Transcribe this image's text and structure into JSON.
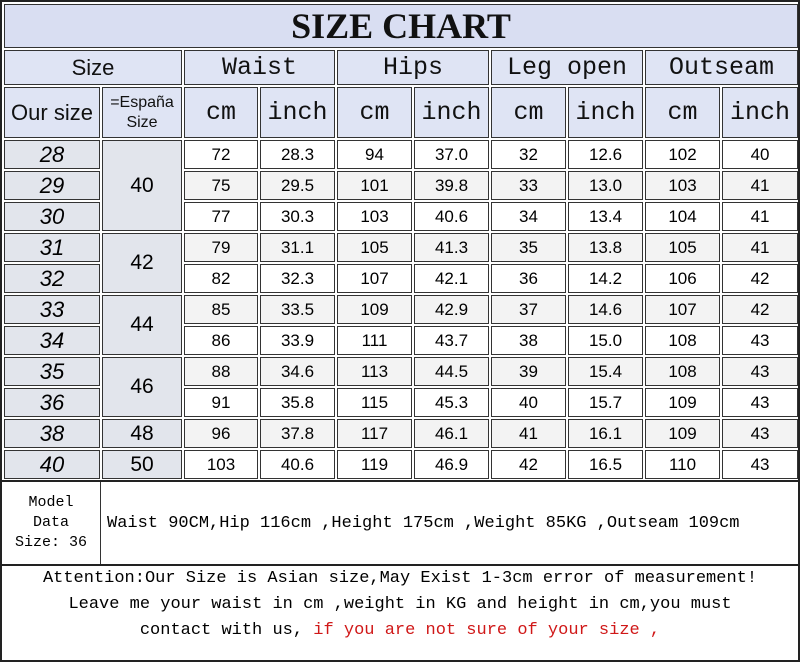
{
  "title": "SIZE CHART",
  "headers": {
    "size": "Size",
    "groups": [
      "Waist",
      "Hips",
      "Leg open",
      "Outseam"
    ],
    "our_size": "Our size",
    "espana_line1": "=España",
    "espana_line2": "Size",
    "units": [
      "cm",
      "inch",
      "cm",
      "inch",
      "cm",
      "inch",
      "cm",
      "inch"
    ]
  },
  "rows": [
    {
      "size": "28",
      "es": "40",
      "vals": [
        "72",
        "28.3",
        "94",
        "37.0",
        "32",
        "12.6",
        "102",
        "40"
      ]
    },
    {
      "size": "29",
      "es": "",
      "vals": [
        "75",
        "29.5",
        "101",
        "39.8",
        "33",
        "13.0",
        "103",
        "41"
      ]
    },
    {
      "size": "30",
      "es": "",
      "vals": [
        "77",
        "30.3",
        "103",
        "40.6",
        "34",
        "13.4",
        "104",
        "41"
      ]
    },
    {
      "size": "31",
      "es": "42",
      "vals": [
        "79",
        "31.1",
        "105",
        "41.3",
        "35",
        "13.8",
        "105",
        "41"
      ]
    },
    {
      "size": "32",
      "es": "",
      "vals": [
        "82",
        "32.3",
        "107",
        "42.1",
        "36",
        "14.2",
        "106",
        "42"
      ]
    },
    {
      "size": "33",
      "es": "44",
      "vals": [
        "85",
        "33.5",
        "109",
        "42.9",
        "37",
        "14.6",
        "107",
        "42"
      ]
    },
    {
      "size": "34",
      "es": "",
      "vals": [
        "86",
        "33.9",
        "111",
        "43.7",
        "38",
        "15.0",
        "108",
        "43"
      ]
    },
    {
      "size": "35",
      "es": "46",
      "vals": [
        "88",
        "34.6",
        "113",
        "44.5",
        "39",
        "15.4",
        "108",
        "43"
      ]
    },
    {
      "size": "36",
      "es": "",
      "vals": [
        "91",
        "35.8",
        "115",
        "45.3",
        "40",
        "15.7",
        "109",
        "43"
      ]
    },
    {
      "size": "38",
      "es": "48",
      "vals": [
        "96",
        "37.8",
        "117",
        "46.1",
        "41",
        "16.1",
        "109",
        "43"
      ]
    },
    {
      "size": "40",
      "es": "50",
      "vals": [
        "103",
        "40.6",
        "119",
        "46.9",
        "42",
        "16.5",
        "110",
        "43"
      ]
    }
  ],
  "espana_spans": [
    3,
    0,
    0,
    2,
    0,
    2,
    0,
    2,
    0,
    1,
    1
  ],
  "model": {
    "label_line1": "Model",
    "label_line2": "Data",
    "label_line3": "Size: 36",
    "text": "Waist 90CM,Hip 116cm ,Height 175cm ,Weight 85KG ,Outseam 109cm"
  },
  "attention": {
    "line1": "Attention:Our Size is Asian size,May Exist 1-3cm error of measurement!",
    "line2": "Leave me your waist in cm ,weight in KG and height in cm,you must",
    "line3_black": "contact with us, ",
    "line3_red": " if you are not sure of your size ,"
  },
  "colors": {
    "header_bg": "#dfe4f4",
    "size_col_bg": "#e2e5ec",
    "highlight_text": "#d01818"
  }
}
